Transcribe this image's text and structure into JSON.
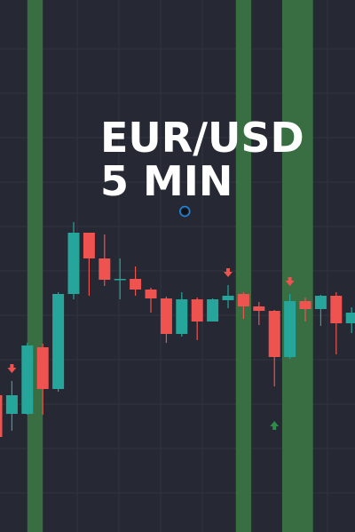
{
  "chart_data": {
    "type": "candlestick",
    "title": [
      "EUR/USD",
      "5 MIN"
    ],
    "grid": true,
    "legend": "none",
    "colors": {
      "background": "#262833",
      "grid": "#31343f",
      "up": "#26a69a",
      "down": "#ef5350",
      "band": "#3c7a45",
      "arrow_down": "#ef5350",
      "arrow_up": "#2e8b4a",
      "marker": "#1e88e5"
    },
    "price_range": [
      0,
      599
    ],
    "highlight_bands": [
      {
        "from": 2.0,
        "to": 3.0
      },
      {
        "from": 15.5,
        "to": 16.5
      },
      {
        "from": 18.5,
        "to": 20.5
      }
    ],
    "candles": [
      {
        "o": 154,
        "h": 155,
        "l": 108,
        "c": 107
      },
      {
        "o": 133,
        "h": 170,
        "l": 114,
        "c": 154
      },
      {
        "o": 133,
        "h": 213,
        "l": 132,
        "c": 210
      },
      {
        "o": 208,
        "h": 212,
        "l": 132,
        "c": 161
      },
      {
        "o": 161,
        "h": 270,
        "l": 158,
        "c": 268
      },
      {
        "o": 268,
        "h": 349,
        "l": 262,
        "c": 337
      },
      {
        "o": 337,
        "h": 337,
        "l": 266,
        "c": 308
      },
      {
        "o": 308,
        "h": 335,
        "l": 277,
        "c": 284
      },
      {
        "o": 284,
        "h": 308,
        "l": 262,
        "c": 285
      },
      {
        "o": 285,
        "h": 299,
        "l": 266,
        "c": 273
      },
      {
        "o": 273,
        "h": 275,
        "l": 247,
        "c": 263
      },
      {
        "o": 263,
        "h": 265,
        "l": 213,
        "c": 223
      },
      {
        "o": 223,
        "h": 270,
        "l": 220,
        "c": 262
      },
      {
        "o": 262,
        "h": 264,
        "l": 216,
        "c": 237
      },
      {
        "o": 237,
        "h": 263,
        "l": 237,
        "c": 262
      },
      {
        "o": 261,
        "h": 278,
        "l": 252,
        "c": 266
      },
      {
        "o": 268,
        "h": 270,
        "l": 240,
        "c": 254
      },
      {
        "o": 254,
        "h": 259,
        "l": 233,
        "c": 249
      },
      {
        "o": 249,
        "h": 250,
        "l": 164,
        "c": 197
      },
      {
        "o": 197,
        "h": 268,
        "l": 195,
        "c": 260
      },
      {
        "o": 260,
        "h": 264,
        "l": 237,
        "c": 251
      },
      {
        "o": 251,
        "h": 267,
        "l": 232,
        "c": 266
      },
      {
        "o": 266,
        "h": 270,
        "l": 200,
        "c": 235
      },
      {
        "o": 235,
        "h": 253,
        "l": 224,
        "c": 247
      }
    ],
    "signals": [
      {
        "index": 1,
        "dir": "down"
      },
      {
        "index": 15,
        "dir": "down"
      },
      {
        "index": 18,
        "dir": "up"
      },
      {
        "index": 19,
        "dir": "down"
      }
    ],
    "marker": {
      "index": 12.2,
      "price": 361
    }
  }
}
